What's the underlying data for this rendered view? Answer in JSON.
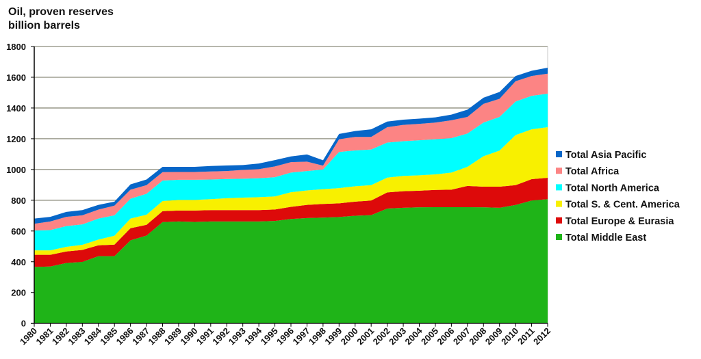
{
  "chart_data": {
    "type": "area",
    "stacked": true,
    "title": "Oil, proven reserves",
    "subtitle": "billion barrels",
    "xlabel": "",
    "ylabel": "",
    "ylim": [
      0,
      1800
    ],
    "yticks": [
      0,
      200,
      400,
      600,
      800,
      1000,
      1200,
      1400,
      1600,
      1800
    ],
    "grid": true,
    "legend_position": "right",
    "x": [
      "1980",
      "1981",
      "1982",
      "1983",
      "1984",
      "1985",
      "1986",
      "1987",
      "1988",
      "1989",
      "1990",
      "1991",
      "1992",
      "1993",
      "1994",
      "1995",
      "1996",
      "1997",
      "1998",
      "1999",
      "2000",
      "2001",
      "2002",
      "2003",
      "2004",
      "2005",
      "2006",
      "2007",
      "2008",
      "2009",
      "2010",
      "2011",
      "2012"
    ],
    "series": [
      {
        "name": "Total Middle East",
        "color": "#1fb418",
        "values": [
          366,
          369,
          392,
          399,
          436,
          436,
          539,
          570,
          658,
          662,
          659,
          662,
          662,
          662,
          662,
          665,
          678,
          684,
          687,
          691,
          699,
          703,
          746,
          751,
          754,
          755,
          755,
          755,
          754,
          751,
          769,
          798,
          807
        ]
      },
      {
        "name": "Total Europe & Eurasia",
        "color": "#dd0a0a",
        "values": [
          79,
          76,
          75,
          78,
          71,
          75,
          79,
          70,
          71,
          71,
          74,
          74,
          74,
          74,
          74,
          75,
          79,
          86,
          89,
          89,
          92,
          95,
          105,
          108,
          108,
          112,
          114,
          138,
          134,
          137,
          129,
          139,
          139
        ]
      },
      {
        "name": "Total S. & Cent. America",
        "color": "#f8f000",
        "values": [
          29,
          29,
          30,
          33,
          37,
          58,
          63,
          66,
          66,
          69,
          69,
          71,
          77,
          81,
          84,
          85,
          95,
          94,
          96,
          99,
          100,
          100,
          96,
          99,
          100,
          101,
          111,
          124,
          198,
          235,
          326,
          324,
          329
        ]
      },
      {
        "name": "Total North America",
        "color": "#00ffff",
        "values": [
          129,
          132,
          135,
          133,
          137,
          133,
          129,
          136,
          133,
          131,
          131,
          128,
          125,
          123,
          123,
          125,
          128,
          126,
          128,
          235,
          233,
          232,
          228,
          226,
          228,
          229,
          224,
          217,
          219,
          219,
          218,
          218,
          218
        ]
      },
      {
        "name": "Total Africa",
        "color": "#fc8484",
        "values": [
          44,
          56,
          60,
          59,
          58,
          63,
          59,
          56,
          55,
          51,
          51,
          52,
          52,
          57,
          59,
          70,
          68,
          61,
          25,
          83,
          88,
          82,
          100,
          106,
          107,
          108,
          116,
          108,
          122,
          118,
          132,
          129,
          130
        ]
      },
      {
        "name": "Total Asia Pacific",
        "color": "#0766c8",
        "values": [
          34,
          30,
          32,
          34,
          31,
          26,
          34,
          37,
          34,
          33,
          33,
          36,
          36,
          32,
          37,
          41,
          37,
          47,
          35,
          34,
          38,
          49,
          37,
          34,
          34,
          34,
          37,
          47,
          40,
          44,
          34,
          34,
          39
        ]
      }
    ]
  }
}
